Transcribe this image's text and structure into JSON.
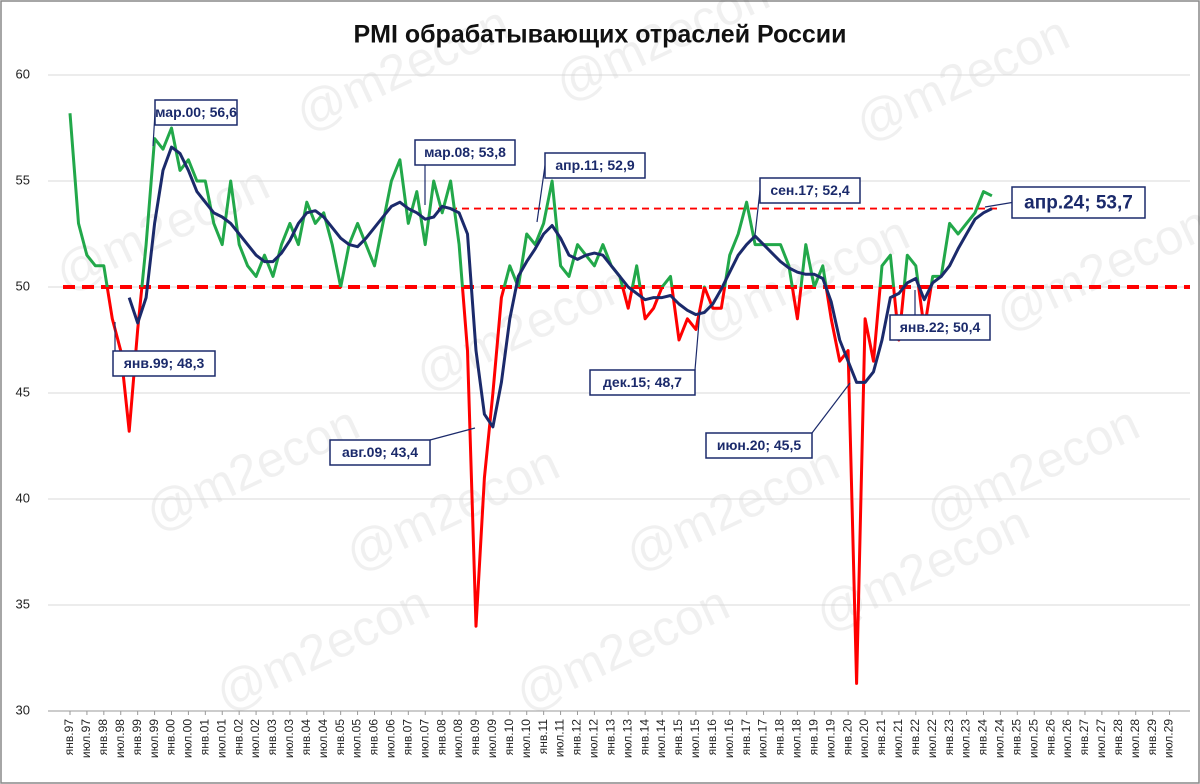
{
  "chart_data": {
    "type": "line",
    "title": "PMI обрабатывающих отраслей России",
    "watermark": "@m2econ",
    "categories": [
      "янв.97",
      null,
      "июл.97",
      null,
      "янв.98",
      null,
      "июл.98",
      null,
      "янв.99",
      null,
      "июл.99",
      null,
      "янв.00",
      null,
      "июл.00",
      null,
      "янв.01",
      null,
      "июл.01",
      null,
      "янв.02",
      null,
      "июл.02",
      null,
      "янв.03",
      null,
      "июл.03",
      null,
      "янв.04",
      null,
      "июл.04",
      null,
      "янв.05",
      null,
      "июл.05",
      null,
      "янв.06",
      null,
      "июл.06",
      null,
      "янв.07",
      null,
      "июл.07",
      null,
      "янв.08",
      null,
      "июл.08",
      null,
      "янв.09",
      null,
      "июл.09",
      null,
      "янв.10",
      null,
      "июл.10",
      null,
      "янв.11",
      null,
      "июл.11",
      null,
      "янв.12",
      null,
      "июл.12",
      null,
      "янв.13",
      null,
      "июл.13",
      null,
      "янв.14",
      null,
      "июл.14",
      null,
      "янв.15",
      null,
      "июл.15",
      null,
      "янв.16",
      null,
      "июл.16",
      null,
      "янв.17",
      null,
      "июл.17",
      null,
      "янв.18",
      null,
      "июл.18",
      null,
      "янв.19",
      null,
      "июл.19",
      null,
      "янв.20",
      null,
      "июл.20",
      null,
      "янв.21",
      null,
      "июл.21",
      null,
      "янв.22",
      null,
      "июл.22",
      null,
      "янв.23",
      null,
      "июл.23",
      null,
      "янв.24",
      null,
      "июл.24",
      null,
      "янв.25",
      null,
      "июл.25",
      null,
      "янв.26",
      null,
      "июл.26",
      null,
      "янв.27",
      null,
      "июл.27",
      null,
      "янв.28",
      null,
      "июл.28",
      null,
      "янв.29",
      null,
      "июл.29",
      null
    ],
    "series": [
      {
        "color_above": "#22a84a",
        "color_below": "#ff0000",
        "threshold": 50,
        "values": [
          58.2,
          53,
          51.5,
          51,
          51,
          48.5,
          47,
          43.2,
          48,
          52,
          57,
          56.5,
          57.5,
          55.5,
          56,
          55,
          55,
          53,
          52,
          55,
          52,
          51,
          50.5,
          51.5,
          50.5,
          52,
          53,
          52,
          54,
          53,
          53.5,
          52,
          50,
          52,
          53,
          52,
          51,
          53,
          55,
          56,
          53,
          54.5,
          52,
          55,
          53.5,
          55,
          52,
          47,
          34,
          41,
          45,
          49.5,
          51,
          50,
          52.5,
          52,
          53,
          55,
          51,
          50.5,
          52,
          51.5,
          51,
          52,
          51,
          50.5,
          49,
          51,
          48.5,
          49,
          50,
          50.5,
          47.5,
          48.5,
          48,
          50,
          49,
          49,
          51.5,
          52.5,
          54,
          52,
          52,
          52,
          52,
          51,
          48.5,
          52,
          50,
          51,
          48.5,
          46.5,
          47,
          31.3,
          48.5,
          46.5,
          51,
          51.5,
          47.5,
          51.5,
          51,
          48,
          50.5,
          50.5,
          53,
          52.5,
          53,
          53.5,
          54.5,
          54.3,
          null,
          null,
          null,
          null,
          null,
          null,
          null,
          null,
          null,
          null,
          null,
          null,
          null,
          null,
          null,
          null,
          null,
          null,
          null,
          null,
          null,
          null
        ]
      },
      {
        "color": "#1b2a6b",
        "values": [
          null,
          null,
          null,
          null,
          null,
          null,
          null,
          49.5,
          48.3,
          49.5,
          53,
          55.5,
          56.6,
          56.3,
          55.5,
          54.5,
          54,
          53.5,
          53.3,
          53,
          52.5,
          52,
          51.5,
          51.2,
          51.2,
          51.6,
          52.2,
          53,
          53.5,
          53.6,
          53.3,
          52.8,
          52.3,
          52,
          51.9,
          52.3,
          52.8,
          53.3,
          53.8,
          54,
          53.7,
          53.5,
          53.2,
          53.3,
          53.8,
          53.7,
          53.5,
          52.5,
          47,
          44,
          43.4,
          45.5,
          48.5,
          50.5,
          51.2,
          51.8,
          52.5,
          52.9,
          52.3,
          51.5,
          51.3,
          51.5,
          51.6,
          51.5,
          51,
          50.5,
          50,
          49.7,
          49.4,
          49.5,
          49.5,
          49.6,
          49.2,
          48.9,
          48.7,
          48.8,
          49.2,
          49.9,
          50.7,
          51.5,
          52,
          52.4,
          52,
          51.6,
          51.2,
          50.9,
          50.7,
          50.6,
          50.6,
          50.4,
          49.3,
          47.5,
          46.5,
          45.5,
          45.5,
          46,
          47.5,
          49.5,
          49.7,
          50.2,
          50.4,
          49.4,
          50.2,
          50.5,
          51,
          51.8,
          52.5,
          53.2,
          53.5,
          53.7,
          null,
          null,
          null,
          null,
          null,
          null,
          null,
          null,
          null,
          null,
          null,
          null,
          null,
          null,
          null,
          null,
          null,
          null,
          null,
          null,
          null,
          null
        ]
      }
    ],
    "reference_lines": [
      {
        "value": 50,
        "color": "#ff0000"
      },
      {
        "value": 53.7,
        "color": "#ff0000"
      }
    ],
    "annotations": [
      "мар.00; 56,6",
      "янв.99; 48,3",
      "мар.08; 53,8",
      "авг.09; 43,4",
      "апр.11; 52,9",
      "дек.15; 48,7",
      "сен.17; 52,4",
      "июн.20; 45,5",
      "янв.22; 50,4",
      "апр.24; 53,7"
    ],
    "ylim": [
      30,
      60
    ],
    "yticks": [
      30,
      35,
      40,
      45,
      50,
      55,
      60
    ],
    "grid": true
  }
}
